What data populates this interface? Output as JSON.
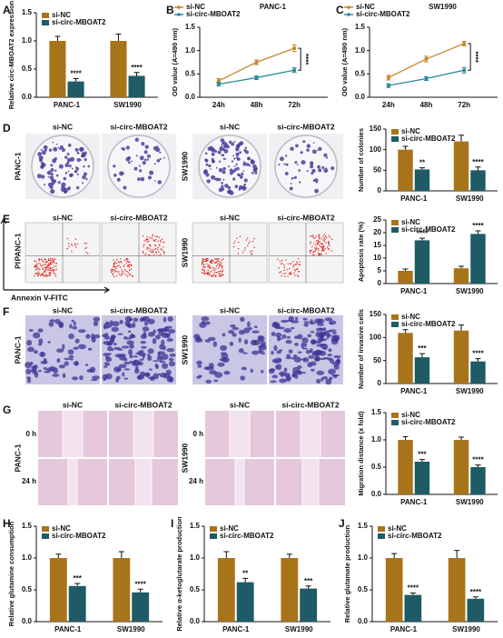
{
  "chart_data": [
    {
      "type": "bar",
      "panel": "A",
      "ylabel": "Relative circ-MBOAT2 expression",
      "categories": [
        "PANC-1",
        "SW1990"
      ],
      "series": [
        {
          "name": "si-NC",
          "color": "#a8741a",
          "values": [
            1.0,
            1.0
          ],
          "errors": [
            0.08,
            0.12
          ]
        },
        {
          "name": "si-circ-MBOAT2",
          "color": "#1e5b66",
          "values": [
            0.28,
            0.38
          ],
          "errors": [
            0.05,
            0.06
          ]
        }
      ],
      "annotations": [
        "****",
        "****"
      ],
      "ylim": [
        0,
        1.5
      ],
      "yticks": [
        {
          "value": 0,
          "label": "0.0"
        },
        0.5,
        {
          "value": 1,
          "label": "1.0"
        },
        1.5
      ]
    },
    {
      "type": "line",
      "panel": "B",
      "title": "PANC-1",
      "ylabel": "OD value (A=490 nm)",
      "categories": [
        "24h",
        "48h",
        "72h"
      ],
      "series": [
        {
          "name": "si-NC",
          "color": "#c8862a",
          "values": [
            0.35,
            0.75,
            1.05
          ],
          "errors": [
            0.05,
            0.05,
            0.07
          ]
        },
        {
          "name": "si-circ-MBOAT2",
          "color": "#2a8c9c",
          "values": [
            0.28,
            0.42,
            0.58
          ],
          "errors": [
            0.04,
            0.04,
            0.05
          ]
        }
      ],
      "annotations": [
        "****"
      ],
      "ylim": [
        0,
        1.5
      ],
      "yticks": [
        {
          "value": 0,
          "label": "0.0"
        },
        0.5,
        {
          "value": 1,
          "label": "1.0"
        },
        1.5
      ]
    },
    {
      "type": "line",
      "panel": "C",
      "title": "SW1990",
      "ylabel": "OD value (A=490 nm)",
      "categories": [
        "24h",
        "48h",
        "72h"
      ],
      "series": [
        {
          "name": "si-NC",
          "color": "#c8862a",
          "values": [
            0.42,
            0.82,
            1.15
          ],
          "errors": [
            0.05,
            0.06,
            0.05
          ]
        },
        {
          "name": "si-circ-MBOAT2",
          "color": "#2a8c9c",
          "values": [
            0.25,
            0.4,
            0.58
          ],
          "errors": [
            0.04,
            0.04,
            0.06
          ]
        }
      ],
      "annotations": [
        "****"
      ],
      "ylim": [
        0,
        1.5
      ],
      "yticks": [
        {
          "value": 0,
          "label": "0.0"
        },
        0.5,
        {
          "value": 1,
          "label": "1.0"
        },
        1.5
      ]
    },
    {
      "type": "bar",
      "ylabel": "Number of colonies",
      "categories": [
        "PANC-1",
        "SW1990"
      ],
      "series": [
        {
          "name": "si-NC",
          "color": "#a8741a",
          "values": [
            100,
            120
          ],
          "errors": [
            8,
            15
          ]
        },
        {
          "name": "si-circ-MBOAT2",
          "color": "#1e5b66",
          "values": [
            52,
            50
          ],
          "errors": [
            4,
            8
          ]
        }
      ],
      "annotations": [
        "**",
        "****"
      ],
      "ylim": [
        0,
        150
      ],
      "yticks": [
        0,
        50,
        100,
        150
      ]
    },
    {
      "type": "bar",
      "ylabel": "Apoptosis rate (%)",
      "categories": [
        "PANC-1",
        "SW1990"
      ],
      "series": [
        {
          "name": "si-NC",
          "color": "#a8741a",
          "values": [
            5,
            6
          ],
          "errors": [
            0.7,
            0.8
          ]
        },
        {
          "name": "si-circ-MBOAT2",
          "color": "#1e5b66",
          "values": [
            17,
            19.5
          ],
          "errors": [
            0.8,
            1.2
          ]
        }
      ],
      "annotations": [
        "****",
        "****"
      ],
      "ylim": [
        0,
        25
      ],
      "yticks": [
        0,
        5,
        10,
        15,
        20,
        25
      ]
    },
    {
      "type": "bar",
      "ylabel": "Number of invasive cells",
      "categories": [
        "PANC-1",
        "SW1990"
      ],
      "series": [
        {
          "name": "si-NC",
          "color": "#a8741a",
          "values": [
            110,
            115
          ],
          "errors": [
            7,
            12
          ]
        },
        {
          "name": "si-circ-MBOAT2",
          "color": "#1e5b66",
          "values": [
            57,
            48
          ],
          "errors": [
            8,
            6
          ]
        }
      ],
      "annotations": [
        "***",
        "****"
      ],
      "ylim": [
        0,
        150
      ],
      "yticks": [
        0,
        50,
        100,
        150
      ]
    },
    {
      "type": "bar",
      "ylabel": "Migration distance (x fold)",
      "categories": [
        "PANC-1",
        "SW1990"
      ],
      "series": [
        {
          "name": "si-NC",
          "color": "#a8741a",
          "values": [
            1.0,
            1.0
          ],
          "errors": [
            0.06,
            0.05
          ]
        },
        {
          "name": "si-circ-MBOAT2",
          "color": "#1e5b66",
          "values": [
            0.6,
            0.5
          ],
          "errors": [
            0.04,
            0.04
          ]
        }
      ],
      "annotations": [
        "***",
        "****"
      ],
      "ylim": [
        0,
        1.5
      ],
      "yticks": [
        {
          "value": 0,
          "label": "0.0"
        },
        0.5,
        {
          "value": 1,
          "label": "1.0"
        },
        1.5
      ]
    },
    {
      "type": "bar",
      "panel": "H",
      "ylabel": "Relative glutamine consumption",
      "categories": [
        "PANC-1",
        "SW1990"
      ],
      "series": [
        {
          "name": "si-NC",
          "color": "#a8741a",
          "values": [
            1.0,
            1.0
          ],
          "errors": [
            0.06,
            0.1
          ]
        },
        {
          "name": "si-circ-MBOAT2",
          "color": "#1e5b66",
          "values": [
            0.56,
            0.46
          ],
          "errors": [
            0.04,
            0.05
          ]
        }
      ],
      "annotations": [
        "***",
        "****"
      ],
      "ylim": [
        0,
        1.5
      ],
      "yticks": [
        {
          "value": 0,
          "label": "0.0"
        },
        0.5,
        {
          "value": 1,
          "label": "1.0"
        },
        1.5
      ]
    },
    {
      "type": "bar",
      "panel": "I",
      "ylabel": "Relative α-ketoglutarate production",
      "categories": [
        "PANC-1",
        "SW1990"
      ],
      "series": [
        {
          "name": "si-NC",
          "color": "#a8741a",
          "values": [
            1.0,
            1.0
          ],
          "errors": [
            0.1,
            0.06
          ]
        },
        {
          "name": "si-circ-MBOAT2",
          "color": "#1e5b66",
          "values": [
            0.62,
            0.52
          ],
          "errors": [
            0.06,
            0.04
          ]
        }
      ],
      "annotations": [
        "**",
        "***"
      ],
      "ylim": [
        0,
        1.5
      ],
      "yticks": [
        {
          "value": 0,
          "label": "0.0"
        },
        0.5,
        {
          "value": 1,
          "label": "1.0"
        },
        1.5
      ]
    },
    {
      "type": "bar",
      "panel": "J",
      "ylabel": "Relative glutamate production",
      "categories": [
        "PANC-1",
        "SW1990"
      ],
      "series": [
        {
          "name": "si-NC",
          "color": "#a8741a",
          "values": [
            1.0,
            1.0
          ],
          "errors": [
            0.07,
            0.12
          ]
        },
        {
          "name": "si-circ-MBOAT2",
          "color": "#1e5b66",
          "values": [
            0.42,
            0.36
          ],
          "errors": [
            0.03,
            0.03
          ]
        }
      ],
      "annotations": [
        "****",
        "****"
      ],
      "ylim": [
        0,
        1.5
      ],
      "yticks": [
        {
          "value": 0,
          "label": "0.0"
        },
        0.5,
        {
          "value": 1,
          "label": "1.0"
        },
        1.5
      ]
    }
  ],
  "image_panels": [
    {
      "letter": "D",
      "kind": "plate",
      "columns": [
        "si-NC",
        "si-circ-MBOAT2",
        "si-NC",
        "si-circ-MBOAT2"
      ],
      "cell_lines": [
        "PANC-1",
        "SW1990"
      ]
    },
    {
      "letter": "E",
      "kind": "flow",
      "columns": [
        "si-NC",
        "si-circ-MBOAT2",
        "si-NC",
        "si-circ-MBOAT2"
      ],
      "cell_lines": [
        "PANC-1",
        "SW1990"
      ],
      "y_axis": "PI",
      "x_axis": "Annexin V-FITC"
    },
    {
      "letter": "F",
      "kind": "invasion",
      "columns": [
        "si-NC",
        "si-circ-MBOAT2",
        "si-NC",
        "si-circ-MBOAT2"
      ],
      "cell_lines": [
        "PANC-1",
        "SW1990"
      ]
    },
    {
      "letter": "G",
      "kind": "wound",
      "columns": [
        "si-NC",
        "si-circ-MBOAT2",
        "si-NC",
        "si-circ-MBOAT2"
      ],
      "cell_lines": [
        "PANC-1",
        "SW1990"
      ],
      "times": [
        "0 h",
        "24 h"
      ]
    }
  ]
}
